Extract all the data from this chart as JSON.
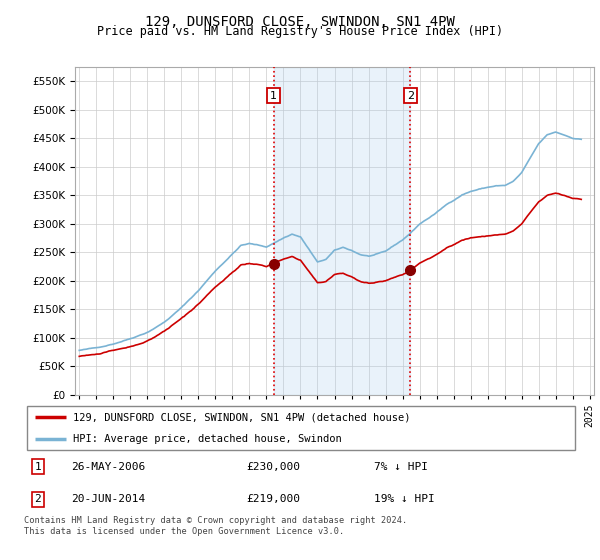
{
  "title": "129, DUNSFORD CLOSE, SWINDON, SN1 4PW",
  "subtitle": "Price paid vs. HM Land Registry's House Price Index (HPI)",
  "hpi_color": "#7ab3d4",
  "sale_color": "#cc0000",
  "shade_color": "#ddeeff",
  "background_color": "#ffffff",
  "plot_bg": "#ffffff",
  "grid_color": "#cccccc",
  "ylim": [
    0,
    575000
  ],
  "yticks": [
    0,
    50000,
    100000,
    150000,
    200000,
    250000,
    300000,
    350000,
    400000,
    450000,
    500000,
    550000
  ],
  "sale1_year": 2006.42,
  "sale1_price": 230000,
  "sale2_year": 2014.46,
  "sale2_price": 219000,
  "legend_line1": "129, DUNSFORD CLOSE, SWINDON, SN1 4PW (detached house)",
  "legend_line2": "HPI: Average price, detached house, Swindon",
  "annotation1_date": "26-MAY-2006",
  "annotation1_price": "£230,000",
  "annotation1_pct": "7% ↓ HPI",
  "annotation2_date": "20-JUN-2014",
  "annotation2_price": "£219,000",
  "annotation2_pct": "19% ↓ HPI",
  "footer": "Contains HM Land Registry data © Crown copyright and database right 2024.\nThis data is licensed under the Open Government Licence v3.0."
}
